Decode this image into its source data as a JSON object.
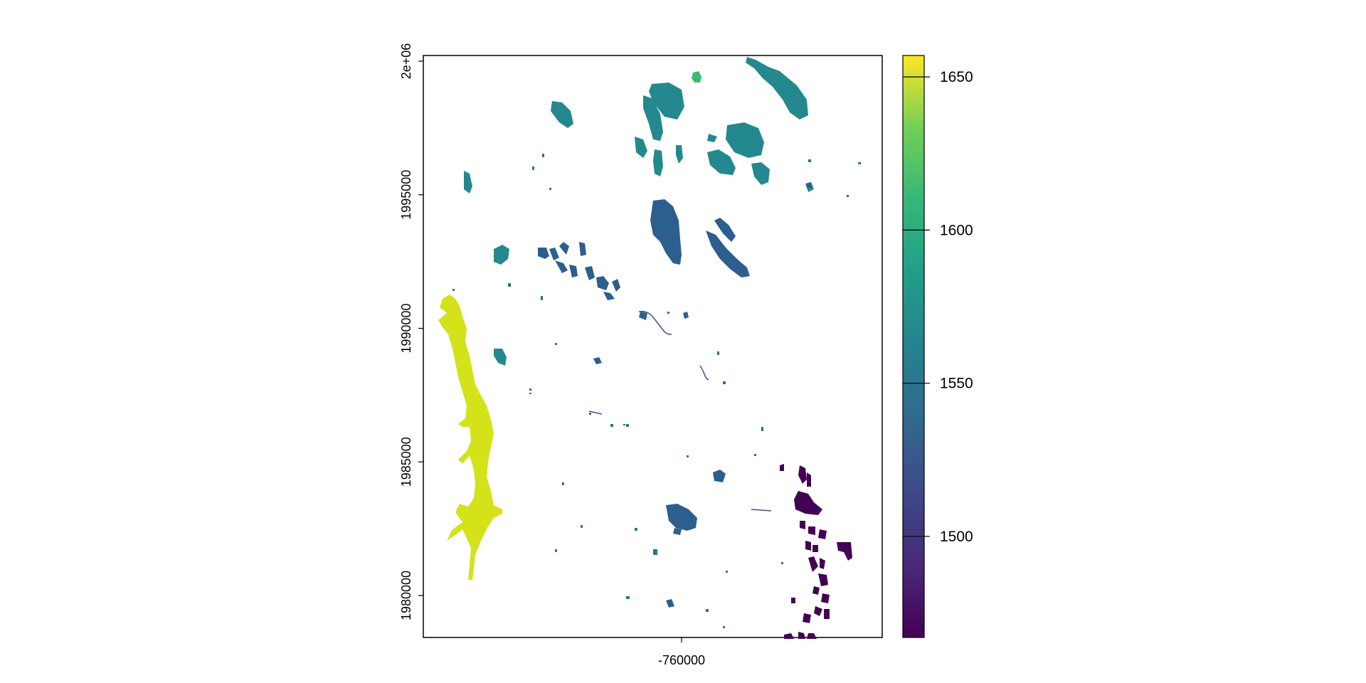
{
  "map": {
    "x_ticks": [
      {
        "value": -760000,
        "label": "-760000"
      }
    ],
    "y_ticks": [
      {
        "value": 2000000,
        "label": "2e+06"
      },
      {
        "value": 1995000,
        "label": "1995000"
      },
      {
        "value": 1990000,
        "label": "1990000"
      },
      {
        "value": 1985000,
        "label": "1985000"
      },
      {
        "value": 1980000,
        "label": "1980000"
      }
    ],
    "colorbar": {
      "ticks": [
        {
          "value": 1650,
          "label": "1650"
        },
        {
          "value": 1600,
          "label": "1600"
        },
        {
          "value": 1550,
          "label": "1550"
        },
        {
          "value": 1500,
          "label": "1500"
        }
      ],
      "range": [
        1467,
        1657
      ],
      "palette": "viridis",
      "colors": {
        "low": "#440154",
        "mid_low": "#3b528b",
        "mid": "#21908c",
        "mid_high": "#5dc863",
        "high": "#fde725"
      }
    },
    "feature_colors": {
      "large_lake": "#d4e21a",
      "teal_lakes": "#23898e",
      "green_lake": "#3fbc73",
      "blue_lakes": "#2c5e8e",
      "navy_lakes": "#355f8d",
      "purple_lakes": "#440154"
    }
  }
}
